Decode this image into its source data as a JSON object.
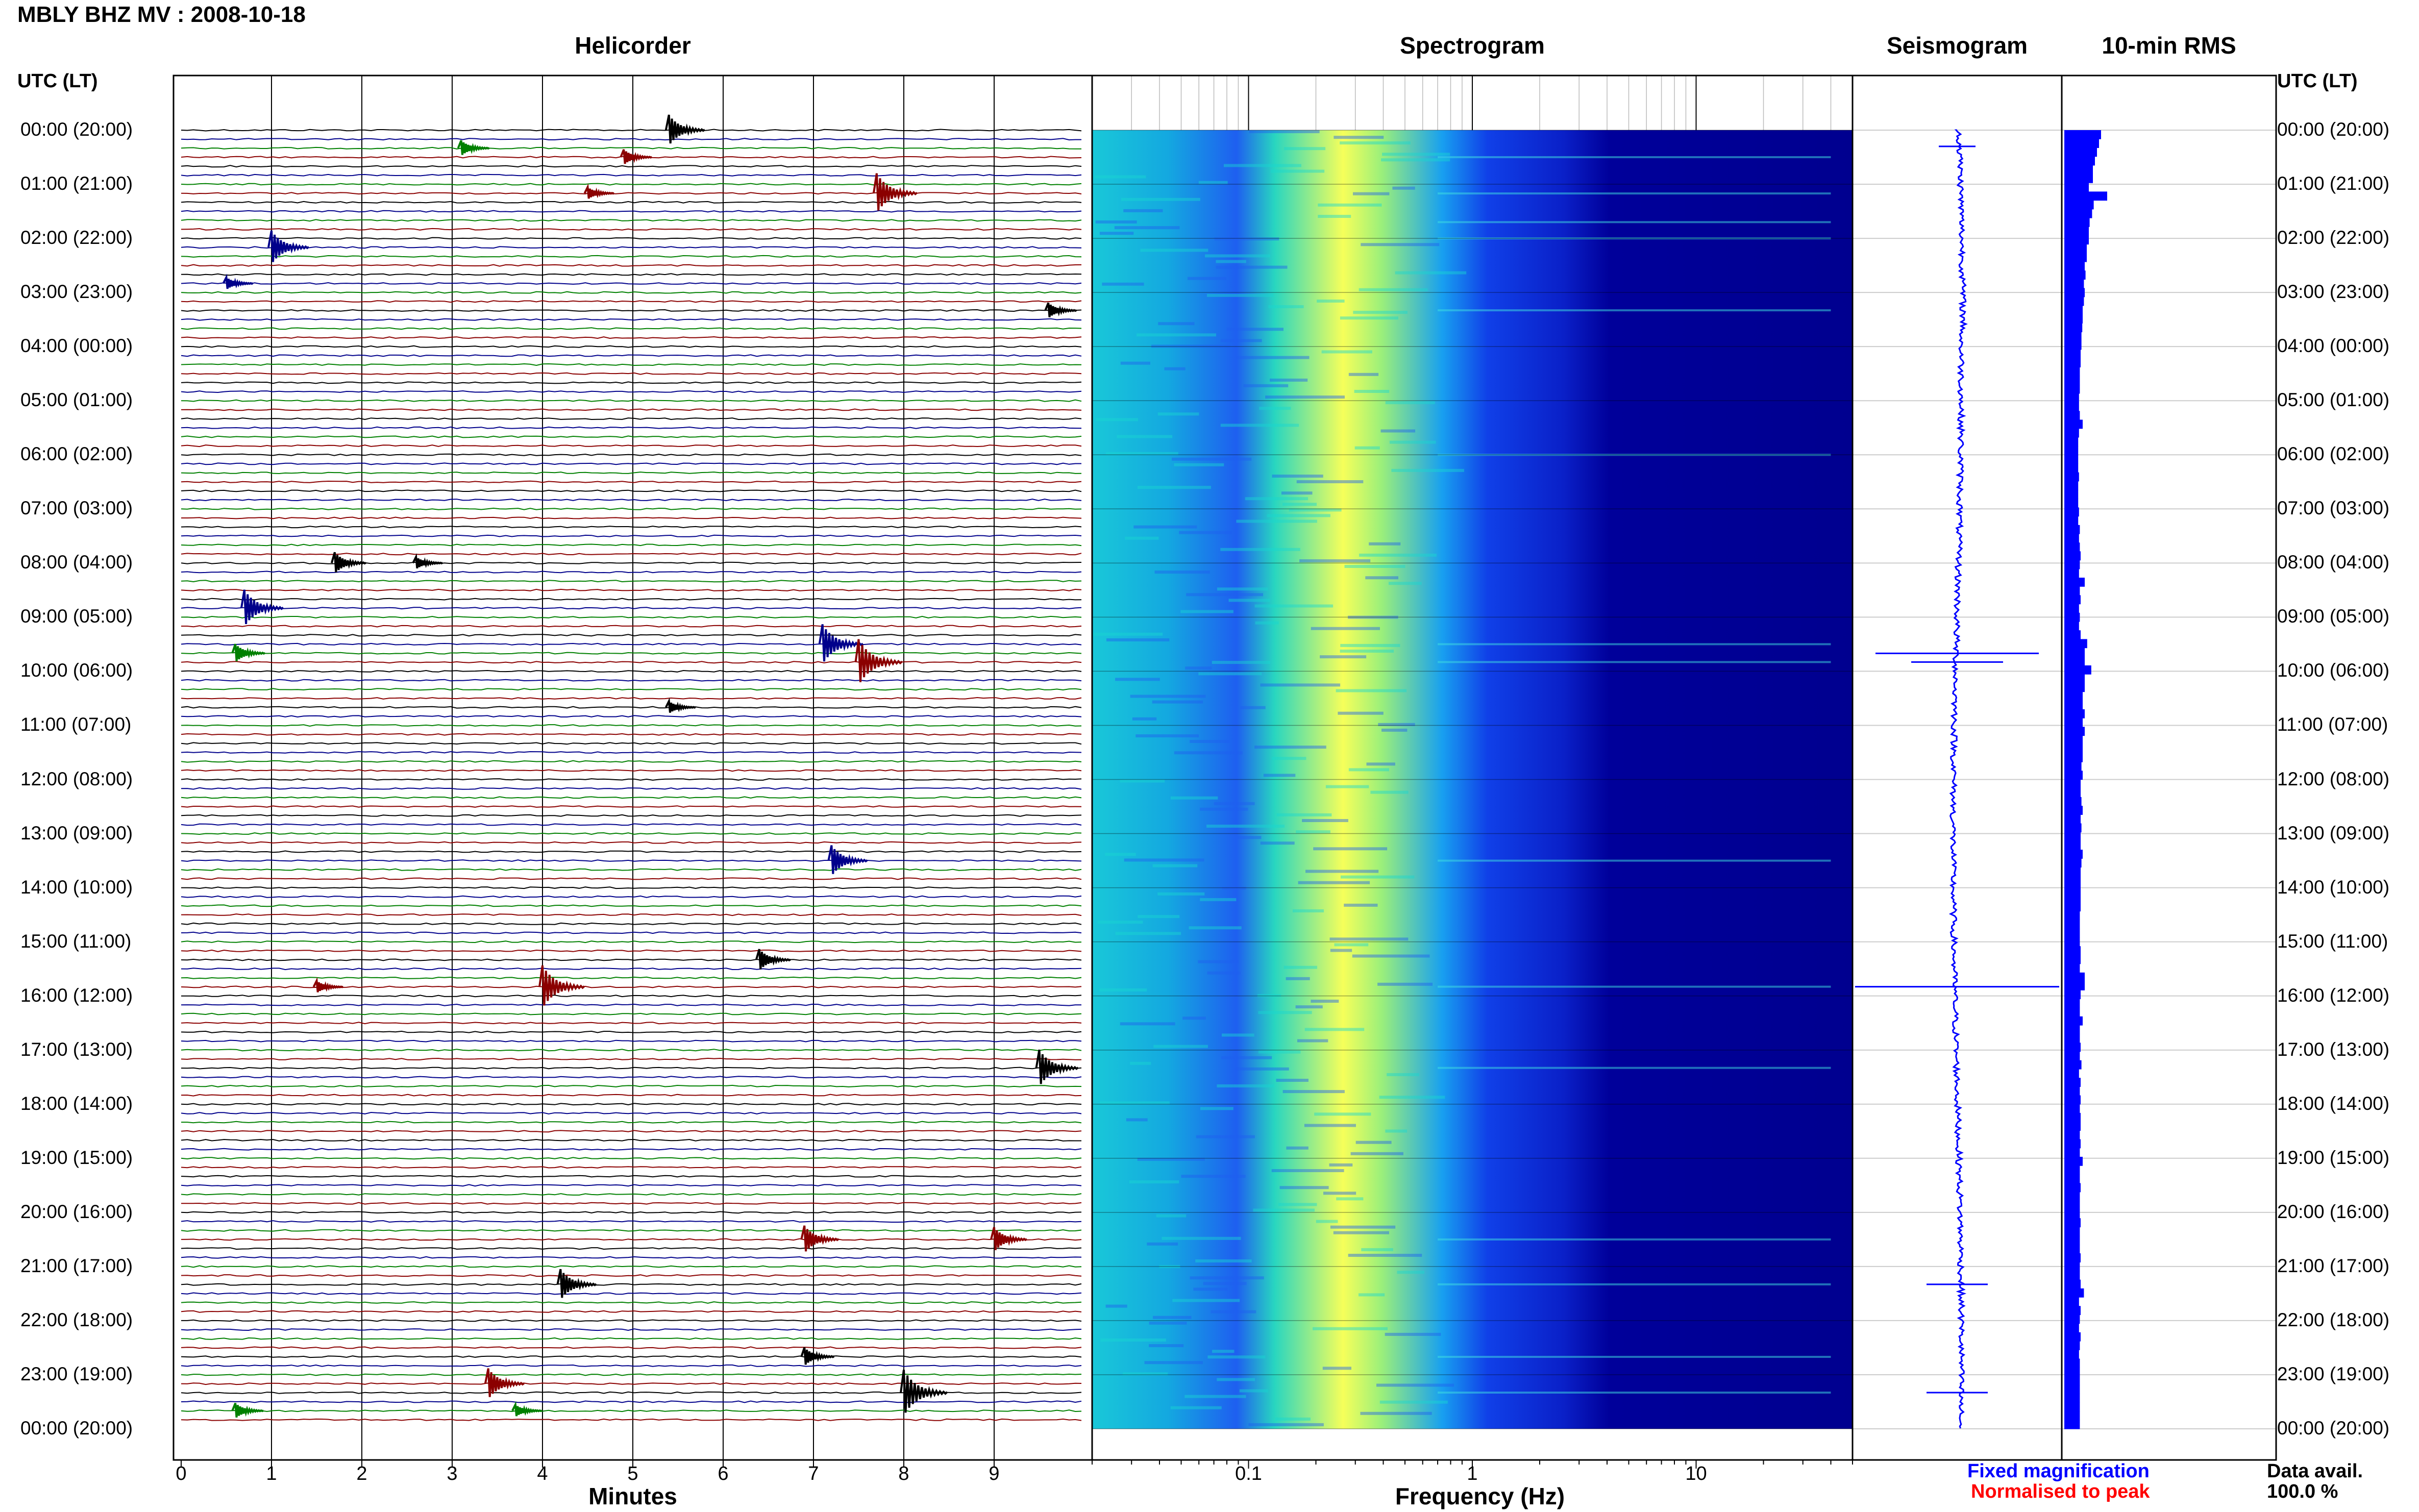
{
  "header": {
    "title": "MBLY BHZ MV : 2008-10-18",
    "utc_header_left": "UTC (LT)",
    "utc_header_right": "UTC (LT)"
  },
  "panels": {
    "helicorder": "Helicorder",
    "spectrogram": "Spectrogram",
    "seismogram": "Seismogram",
    "rms": "10-min RMS"
  },
  "axes": {
    "minutes_label": "Minutes",
    "frequency_label": "Frequency (Hz)"
  },
  "legend": {
    "fixed": "Fixed magnification",
    "normalised": "Normalised to peak",
    "data_avail_label": "Data avail.",
    "data_avail_value": "100.0 %"
  },
  "colors": {
    "trace_black": "#000000",
    "trace_blue": "#00008b",
    "trace_red": "#8b0000",
    "trace_green": "#008000",
    "fixed_legend": "#0000ff",
    "normalised_legend": "#ff0000",
    "spectro_low": "#00008f",
    "spectro_high": "#ffff60",
    "rms_bar": "#0000ff"
  },
  "chart_data": [
    {
      "type": "line",
      "title": "Helicorder",
      "xlabel": "Minutes",
      "x_ticks": [
        "0",
        "1",
        "2",
        "3",
        "4",
        "5",
        "6",
        "7",
        "8",
        "9"
      ],
      "xlim": [
        0,
        10
      ],
      "trace_minutes": 10,
      "trace_color_cycle": [
        "black",
        "blue",
        "green",
        "red"
      ],
      "time_labels": [
        "00:00 (20:00)",
        "01:00 (21:00)",
        "02:00 (22:00)",
        "03:00 (23:00)",
        "04:00 (00:00)",
        "05:00 (01:00)",
        "06:00 (02:00)",
        "07:00 (03:00)",
        "08:00 (04:00)",
        "09:00 (05:00)",
        "10:00 (06:00)",
        "11:00 (07:00)",
        "12:00 (08:00)",
        "13:00 (09:00)",
        "14:00 (10:00)",
        "15:00 (11:00)",
        "16:00 (12:00)",
        "17:00 (13:00)",
        "18:00 (14:00)",
        "19:00 (15:00)",
        "20:00 (16:00)",
        "21:00 (17:00)",
        "22:00 (18:00)",
        "23:00 (19:00)",
        "00:00 (20:00)"
      ],
      "events": [
        {
          "hour": 0.0,
          "minute": 5.4,
          "amp": 1.0
        },
        {
          "hour": 0.3,
          "minute": 3.1,
          "amp": 0.5
        },
        {
          "hour": 0.5,
          "minute": 4.9,
          "amp": 0.5
        },
        {
          "hour": 1.2,
          "minute": 7.7,
          "amp": 1.3
        },
        {
          "hour": 1.2,
          "minute": 4.5,
          "amp": 0.4
        },
        {
          "hour": 2.17,
          "minute": 1.0,
          "amp": 1.1
        },
        {
          "hour": 2.83,
          "minute": 0.5,
          "amp": 0.4
        },
        {
          "hour": 3.33,
          "minute": 9.6,
          "amp": 0.5
        },
        {
          "hour": 8.0,
          "minute": 1.7,
          "amp": 0.7
        },
        {
          "hour": 8.0,
          "minute": 2.6,
          "amp": 0.4
        },
        {
          "hour": 8.83,
          "minute": 0.7,
          "amp": 1.2
        },
        {
          "hour": 9.67,
          "minute": 0.6,
          "amp": 0.6
        },
        {
          "hour": 9.5,
          "minute": 7.1,
          "amp": 1.3
        },
        {
          "hour": 9.83,
          "minute": 7.5,
          "amp": 1.5
        },
        {
          "hour": 10.67,
          "minute": 5.4,
          "amp": 0.4
        },
        {
          "hour": 13.5,
          "minute": 7.2,
          "amp": 1.0
        },
        {
          "hour": 15.33,
          "minute": 6.4,
          "amp": 0.7
        },
        {
          "hour": 15.83,
          "minute": 4.0,
          "amp": 1.4
        },
        {
          "hour": 15.83,
          "minute": 1.5,
          "amp": 0.4
        },
        {
          "hour": 17.33,
          "minute": 9.5,
          "amp": 1.2
        },
        {
          "hour": 20.5,
          "minute": 6.9,
          "amp": 0.9
        },
        {
          "hour": 20.5,
          "minute": 9.0,
          "amp": 0.8
        },
        {
          "hour": 21.33,
          "minute": 4.2,
          "amp": 1.0
        },
        {
          "hour": 22.67,
          "minute": 6.9,
          "amp": 0.6
        },
        {
          "hour": 23.17,
          "minute": 3.4,
          "amp": 1.0
        },
        {
          "hour": 23.33,
          "minute": 8.0,
          "amp": 1.5
        },
        {
          "hour": 23.67,
          "minute": 0.6,
          "amp": 0.5
        },
        {
          "hour": 23.67,
          "minute": 3.7,
          "amp": 0.4
        }
      ]
    },
    {
      "type": "heatmap",
      "title": "Spectrogram",
      "xlabel": "Frequency (Hz)",
      "x_scale": "log",
      "xlim": [
        0.02,
        50
      ],
      "x_ticks": [
        0.1,
        1,
        10
      ],
      "x_tick_labels": [
        "0.1",
        "1",
        "10"
      ],
      "peak_band_hz": [
        0.2,
        0.45
      ],
      "colormap": "jet"
    },
    {
      "type": "line",
      "title": "Seismogram",
      "bursts": [
        {
          "hour": 0.3,
          "amp": 0.18
        },
        {
          "hour": 9.67,
          "amp": 0.8
        },
        {
          "hour": 9.83,
          "amp": 0.45
        },
        {
          "hour": 15.83,
          "amp": 1.0
        },
        {
          "hour": 21.33,
          "amp": 0.3
        },
        {
          "hour": 23.33,
          "amp": 0.3
        }
      ]
    },
    {
      "type": "bar",
      "title": "10-min RMS",
      "orientation": "horizontal",
      "interval_minutes": 10,
      "values": [
        0.9,
        0.85,
        0.8,
        0.75,
        0.7,
        0.7,
        0.6,
        1.05,
        0.72,
        0.68,
        0.62,
        0.6,
        0.6,
        0.55,
        0.55,
        0.5,
        0.52,
        0.48,
        0.5,
        0.48,
        0.45,
        0.45,
        0.44,
        0.42,
        0.42,
        0.4,
        0.4,
        0.38,
        0.38,
        0.38,
        0.36,
        0.36,
        0.38,
        0.45,
        0.36,
        0.34,
        0.34,
        0.34,
        0.34,
        0.36,
        0.34,
        0.34,
        0.34,
        0.36,
        0.34,
        0.38,
        0.36,
        0.38,
        0.4,
        0.38,
        0.36,
        0.5,
        0.38,
        0.4,
        0.36,
        0.38,
        0.36,
        0.4,
        0.56,
        0.5,
        0.5,
        0.66,
        0.5,
        0.5,
        0.45,
        0.45,
        0.5,
        0.45,
        0.5,
        0.45,
        0.45,
        0.45,
        0.42,
        0.45,
        0.4,
        0.4,
        0.42,
        0.45,
        0.4,
        0.42,
        0.4,
        0.4,
        0.45,
        0.42,
        0.4,
        0.4,
        0.4,
        0.4,
        0.4,
        0.38,
        0.38,
        0.38,
        0.38,
        0.4,
        0.4,
        0.38,
        0.5,
        0.5,
        0.4,
        0.38,
        0.38,
        0.45,
        0.38,
        0.38,
        0.4,
        0.38,
        0.42,
        0.36,
        0.4,
        0.38,
        0.4,
        0.38,
        0.4,
        0.4,
        0.38,
        0.4,
        0.38,
        0.45,
        0.38,
        0.38,
        0.4,
        0.38,
        0.38,
        0.38,
        0.4,
        0.38,
        0.38,
        0.38,
        0.4,
        0.38,
        0.38,
        0.4,
        0.48,
        0.36,
        0.4,
        0.38,
        0.36,
        0.4,
        0.38,
        0.36,
        0.38,
        0.38,
        0.38,
        0.38,
        0.38,
        0.38,
        0.38,
        0.38
      ]
    }
  ]
}
